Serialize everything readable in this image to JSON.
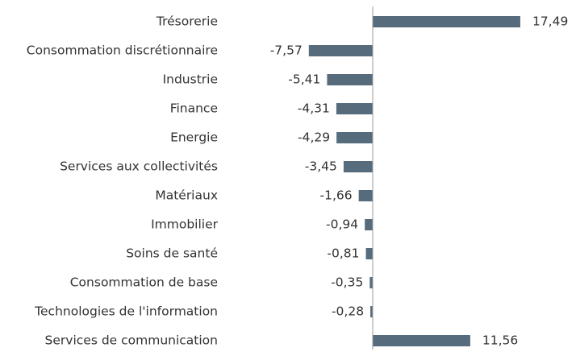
{
  "chart_data": {
    "type": "hbar",
    "categories": [
      "Trésorerie",
      "Consommation discrétionnaire",
      "Industrie",
      "Finance",
      "Energie",
      "Services aux collectivités",
      "Matériaux",
      "Immobilier",
      "Soins de santé",
      "Consommation de base",
      "Technologies de l'information",
      "Services de communication"
    ],
    "values": [
      17.49,
      -7.57,
      -5.41,
      -4.31,
      -4.29,
      -3.45,
      -1.66,
      -0.94,
      -0.81,
      -0.35,
      -0.28,
      11.56
    ],
    "value_labels": [
      "17,49",
      "-7,57",
      "-5,41",
      "-4,31",
      "-4,29",
      "-3,45",
      "-1,66",
      "-0,94",
      "-0,81",
      "-0,35",
      "-0,28",
      "11,56"
    ],
    "color": "#566b7c",
    "xlim": [
      -10,
      20
    ]
  }
}
